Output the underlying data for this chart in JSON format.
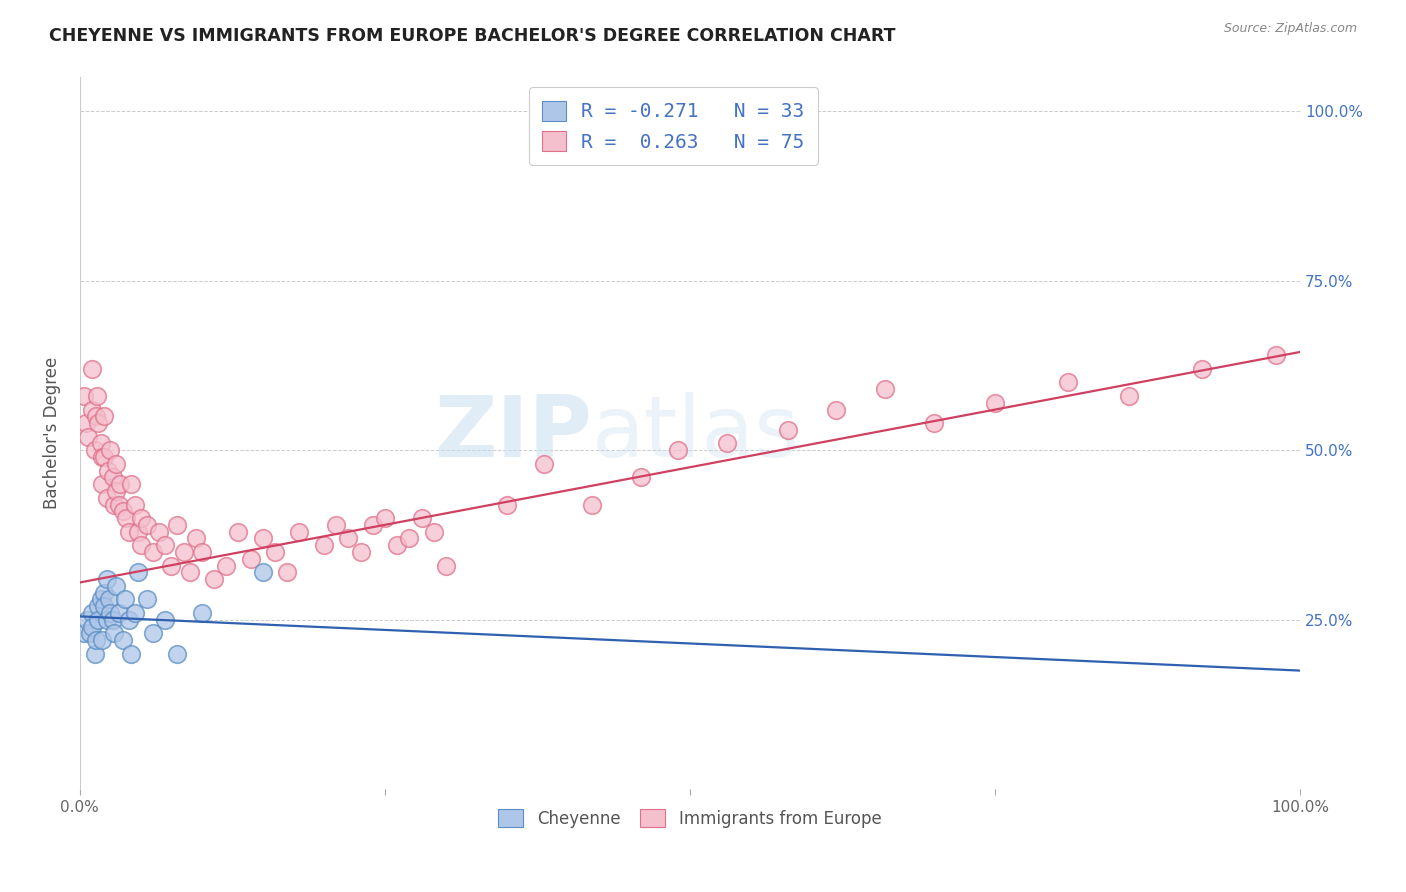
{
  "title": "CHEYENNE VS IMMIGRANTS FROM EUROPE BACHELOR'S DEGREE CORRELATION CHART",
  "source": "Source: ZipAtlas.com",
  "ylabel": "Bachelor's Degree",
  "watermark_zip": "ZIP",
  "watermark_atlas": "atlas",
  "legend_label1": "Cheyenne",
  "legend_label2": "Immigrants from Europe",
  "r1": -0.271,
  "n1": 33,
  "r2": 0.263,
  "n2": 75,
  "blue_fill": "#aec6e8",
  "pink_fill": "#f5c0ce",
  "blue_edge": "#5b8ec4",
  "pink_edge": "#e0708a",
  "blue_line_color": "#3060b0",
  "pink_line_color": "#d04060",
  "label_color": "#4472c4",
  "background_color": "#ffffff",
  "cheyenne_x": [
    0.003,
    0.006,
    0.008,
    0.01,
    0.01,
    0.012,
    0.013,
    0.015,
    0.015,
    0.017,
    0.018,
    0.02,
    0.02,
    0.022,
    0.022,
    0.024,
    0.025,
    0.027,
    0.028,
    0.03,
    0.032,
    0.035,
    0.037,
    0.04,
    0.042,
    0.045,
    0.048,
    0.055,
    0.06,
    0.07,
    0.08,
    0.1,
    0.15
  ],
  "cheyenne_y": [
    0.23,
    0.25,
    0.23,
    0.26,
    0.24,
    0.2,
    0.22,
    0.27,
    0.25,
    0.28,
    0.22,
    0.29,
    0.27,
    0.31,
    0.25,
    0.28,
    0.26,
    0.25,
    0.23,
    0.3,
    0.26,
    0.22,
    0.28,
    0.25,
    0.2,
    0.26,
    0.32,
    0.28,
    0.23,
    0.25,
    0.2,
    0.26,
    0.32
  ],
  "europe_x": [
    0.003,
    0.005,
    0.007,
    0.01,
    0.01,
    0.012,
    0.013,
    0.014,
    0.015,
    0.017,
    0.018,
    0.018,
    0.02,
    0.02,
    0.022,
    0.023,
    0.025,
    0.027,
    0.028,
    0.03,
    0.03,
    0.032,
    0.033,
    0.035,
    0.038,
    0.04,
    0.042,
    0.045,
    0.048,
    0.05,
    0.05,
    0.055,
    0.06,
    0.065,
    0.07,
    0.075,
    0.08,
    0.085,
    0.09,
    0.095,
    0.1,
    0.11,
    0.12,
    0.13,
    0.14,
    0.15,
    0.16,
    0.17,
    0.18,
    0.2,
    0.21,
    0.22,
    0.23,
    0.24,
    0.25,
    0.26,
    0.27,
    0.28,
    0.29,
    0.3,
    0.35,
    0.38,
    0.42,
    0.46,
    0.49,
    0.53,
    0.58,
    0.62,
    0.66,
    0.7,
    0.75,
    0.81,
    0.86,
    0.92,
    0.98
  ],
  "europe_y": [
    0.58,
    0.54,
    0.52,
    0.62,
    0.56,
    0.5,
    0.55,
    0.58,
    0.54,
    0.51,
    0.49,
    0.45,
    0.55,
    0.49,
    0.43,
    0.47,
    0.5,
    0.46,
    0.42,
    0.48,
    0.44,
    0.42,
    0.45,
    0.41,
    0.4,
    0.38,
    0.45,
    0.42,
    0.38,
    0.4,
    0.36,
    0.39,
    0.35,
    0.38,
    0.36,
    0.33,
    0.39,
    0.35,
    0.32,
    0.37,
    0.35,
    0.31,
    0.33,
    0.38,
    0.34,
    0.37,
    0.35,
    0.32,
    0.38,
    0.36,
    0.39,
    0.37,
    0.35,
    0.39,
    0.4,
    0.36,
    0.37,
    0.4,
    0.38,
    0.33,
    0.42,
    0.48,
    0.42,
    0.46,
    0.5,
    0.51,
    0.53,
    0.56,
    0.59,
    0.54,
    0.57,
    0.6,
    0.58,
    0.62,
    0.64
  ],
  "xlim": [
    0.0,
    1.0
  ],
  "ylim": [
    0.0,
    1.05
  ],
  "blue_line_x0": 0.0,
  "blue_line_y0": 0.255,
  "blue_line_x1": 1.0,
  "blue_line_y1": 0.175,
  "pink_line_x0": 0.0,
  "pink_line_y0": 0.305,
  "pink_line_x1": 1.0,
  "pink_line_y1": 0.645
}
